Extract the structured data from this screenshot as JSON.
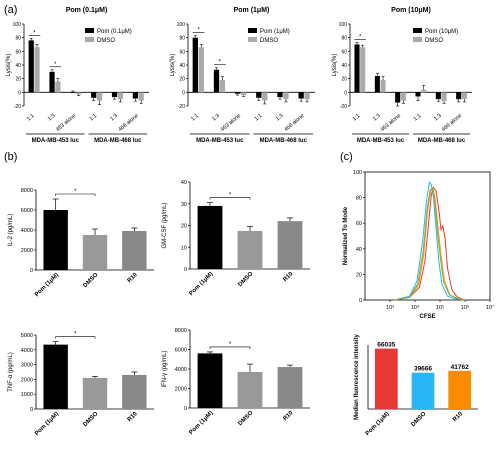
{
  "panel_labels": {
    "a": "(a)",
    "b": "(b)",
    "c": "(c)"
  },
  "chart_data": [
    {
      "id": "a1",
      "type": "bar",
      "title": "Pom (0.1μM)",
      "ylabel": "Lysis(%)",
      "ylim": [
        -20,
        100
      ],
      "yticks": [
        -20,
        0,
        20,
        40,
        60,
        80,
        100
      ],
      "xticks": [
        "1:1",
        "1:3",
        "453 alone",
        "1:1",
        "1:3",
        "468 alone"
      ],
      "group_labels": [
        "MDA-MB-453 luc",
        "MDA-MB-468 luc"
      ],
      "legend": [
        "Pom (0.1μM)",
        "DMSO"
      ],
      "series": [
        {
          "name": "Pom (0.1μM)",
          "color": "#000000",
          "values": [
            76,
            30,
            0,
            -8,
            -7,
            -9
          ],
          "errors": [
            3,
            3,
            2,
            4,
            3,
            4
          ]
        },
        {
          "name": "DMSO",
          "color": "#aaaaaa",
          "values": [
            66,
            16,
            -3,
            -12,
            -10,
            -12
          ],
          "errors": [
            4,
            4,
            2,
            6,
            4,
            4
          ]
        }
      ],
      "significance": [
        {
          "pair": 0,
          "label": "*"
        },
        {
          "pair": 1,
          "label": "*"
        }
      ]
    },
    {
      "id": "a2",
      "type": "bar",
      "title": "Pom (1μM)",
      "ylabel": "Lysis(%)",
      "ylim": [
        -20,
        100
      ],
      "yticks": [
        -20,
        0,
        20,
        40,
        60,
        80,
        100
      ],
      "xticks": [
        "1:1",
        "1:3",
        "453 alone",
        "1:1",
        "1:3",
        "468 alone"
      ],
      "group_labels": [
        "MDA-MB-453 luc",
        "MDA-MB-468 luc"
      ],
      "legend": [
        "Pom (1μM)",
        "DMSO"
      ],
      "series": [
        {
          "name": "Pom (1μM)",
          "color": "#000000",
          "values": [
            80,
            33,
            -2,
            -8,
            -7,
            -9
          ],
          "errors": [
            3,
            3,
            2,
            4,
            3,
            4
          ]
        },
        {
          "name": "DMSO",
          "color": "#aaaaaa",
          "values": [
            66,
            18,
            -4,
            -12,
            -10,
            -10
          ],
          "errors": [
            4,
            5,
            2,
            5,
            4,
            4
          ]
        }
      ],
      "significance": [
        {
          "pair": 0,
          "label": "*"
        },
        {
          "pair": 1,
          "label": "*"
        }
      ]
    },
    {
      "id": "a3",
      "type": "bar",
      "title": "Pom (10μM)",
      "ylabel": "Lysis(%)",
      "ylim": [
        -20,
        100
      ],
      "yticks": [
        -20,
        0,
        20,
        40,
        60,
        80,
        100
      ],
      "xticks": [
        "1:1",
        "1:3",
        "453 alone",
        "1:1",
        "1:3",
        "468 alone"
      ],
      "group_labels": [
        "MDA-MB-453 luc",
        "MDA-MB-468 luc"
      ],
      "legend": [
        "Pom (10μM)",
        "DMSO"
      ],
      "series": [
        {
          "name": "Pom (10μM)",
          "color": "#000000",
          "values": [
            70,
            24,
            -15,
            -6,
            -10,
            -10
          ],
          "errors": [
            3,
            4,
            5,
            6,
            3,
            4
          ]
        },
        {
          "name": "DMSO",
          "color": "#aaaaaa",
          "values": [
            66,
            18,
            -12,
            4,
            -13,
            -10
          ],
          "errors": [
            3,
            5,
            4,
            6,
            3,
            4
          ]
        }
      ],
      "significance": [
        {
          "pair": 0,
          "label": "*"
        }
      ]
    },
    {
      "id": "b1",
      "type": "bar",
      "ylabel": "IL-2 (pg/mL)",
      "ylim": [
        0,
        8000
      ],
      "yticks": [
        0,
        2000,
        4000,
        6000,
        8000
      ],
      "categories": [
        "Pom (1μM)",
        "DMSO",
        "R10"
      ],
      "values": [
        6000,
        3500,
        3900
      ],
      "errors": [
        1100,
        600,
        300
      ],
      "colors": [
        "#000000",
        "#999999",
        "#888888"
      ],
      "significance": [
        {
          "from": 0,
          "to": 1,
          "label": "*"
        }
      ]
    },
    {
      "id": "b2",
      "type": "bar",
      "ylabel": "GM-CSF (pg/mL)",
      "ylim": [
        0,
        40
      ],
      "yticks": [
        0,
        10,
        20,
        30,
        40
      ],
      "categories": [
        "Pom (1μM)",
        "DMSO",
        "R10"
      ],
      "values": [
        29,
        17.5,
        22
      ],
      "errors": [
        1.5,
        2,
        1.5
      ],
      "colors": [
        "#000000",
        "#999999",
        "#888888"
      ],
      "significance": [
        {
          "from": 0,
          "to": 1,
          "label": "*"
        }
      ]
    },
    {
      "id": "b3",
      "type": "bar",
      "ylabel": "TNF-α (pg/mL)",
      "ylim": [
        0,
        5000
      ],
      "yticks": [
        0,
        1000,
        2000,
        3000,
        4000,
        5000
      ],
      "categories": [
        "Pom (1μM)",
        "DMSO",
        "R10"
      ],
      "values": [
        4350,
        2100,
        2300
      ],
      "errors": [
        200,
        100,
        200
      ],
      "colors": [
        "#000000",
        "#999999",
        "#888888"
      ],
      "significance": [
        {
          "from": 0,
          "to": 1,
          "label": "*"
        }
      ]
    },
    {
      "id": "b4",
      "type": "bar",
      "ylabel": "IFN-γ (pg/mL)",
      "ylim": [
        0,
        8000
      ],
      "yticks": [
        0,
        2000,
        4000,
        6000,
        8000
      ],
      "categories": [
        "Pom (1μM)",
        "DMSO",
        "R10"
      ],
      "values": [
        5600,
        3700,
        4200
      ],
      "errors": [
        150,
        800,
        200
      ],
      "colors": [
        "#000000",
        "#999999",
        "#888888"
      ],
      "significance": [
        {
          "from": 0,
          "to": 1,
          "label": "*"
        }
      ]
    },
    {
      "id": "c1",
      "type": "line",
      "xlabel": "CFSE",
      "ylabel": "Normalized To Mode",
      "x_scale": "log",
      "xlim": [
        100,
        10000000
      ],
      "xticks": [
        "10³",
        "10⁴",
        "10⁵",
        "10⁶",
        "10⁷"
      ],
      "ylim": [
        0,
        100
      ],
      "yticks": [
        0,
        20,
        40,
        60,
        80,
        100
      ],
      "series": [
        {
          "color": "#e53935",
          "x": [
            1500,
            6000,
            15000,
            25000,
            35000,
            45000,
            55000,
            70000,
            90000,
            110000,
            130000,
            160000,
            200000,
            300000,
            500000,
            1000000
          ],
          "y": [
            0,
            2,
            10,
            30,
            60,
            82,
            88,
            85,
            70,
            55,
            58,
            48,
            25,
            8,
            2,
            0
          ]
        },
        {
          "color": "#29b6f6",
          "x": [
            1500,
            6000,
            12000,
            20000,
            30000,
            38000,
            45000,
            55000,
            70000,
            90000,
            120000,
            200000,
            400000,
            1000000
          ],
          "y": [
            0,
            3,
            15,
            45,
            80,
            92,
            90,
            80,
            55,
            30,
            12,
            3,
            1,
            0
          ]
        },
        {
          "color": "#fb8c00",
          "x": [
            1500,
            6000,
            14000,
            22000,
            32000,
            42000,
            52000,
            65000,
            85000,
            110000,
            150000,
            250000,
            500000,
            1000000
          ],
          "y": [
            0,
            2,
            12,
            35,
            70,
            85,
            88,
            78,
            55,
            35,
            15,
            4,
            1,
            0
          ]
        },
        {
          "color": "#7cb342",
          "x": [
            1500,
            6000,
            13000,
            21000,
            31000,
            40000,
            50000,
            62000,
            80000,
            105000,
            140000,
            240000,
            500000,
            1000000
          ],
          "y": [
            0,
            2,
            13,
            38,
            72,
            86,
            87,
            76,
            52,
            32,
            14,
            4,
            1,
            0
          ]
        }
      ]
    },
    {
      "id": "c2",
      "type": "bar",
      "ylabel": "Median fluorescence intensity",
      "ylim": [
        0,
        70000
      ],
      "categories": [
        "Pom (1μM)",
        "DMSO",
        "R10"
      ],
      "values": [
        66035,
        39666,
        41762
      ],
      "colors": [
        "#e53935",
        "#29b6f6",
        "#fb8c00"
      ],
      "value_labels": [
        "66035",
        "39666",
        "41762"
      ]
    }
  ]
}
